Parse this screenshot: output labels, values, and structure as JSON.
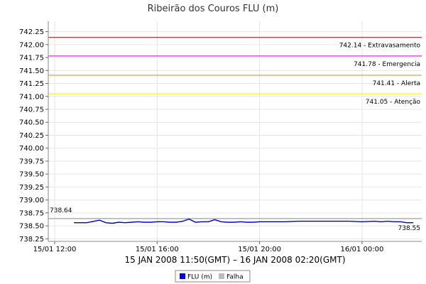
{
  "chart_data": {
    "type": "line",
    "title": "Ribeirão dos Couros FLU (m)",
    "subtitle": "15 JAN 2008 11:50(GMT) – 16 JAN 2008 02:20(GMT)",
    "ylim": [
      738.2,
      742.45
    ],
    "yticks": [
      "742.25",
      "742.00",
      "741.75",
      "741.50",
      "741.25",
      "741.00",
      "740.75",
      "740.50",
      "740.25",
      "740.00",
      "739.75",
      "739.50",
      "739.25",
      "739.00",
      "738.75",
      "738.50",
      "738.25"
    ],
    "x_range_hours": [
      11.75,
      26.33
    ],
    "xticks": [
      {
        "label": "15/01 12:00",
        "hour": 12
      },
      {
        "label": "15/01 16:00",
        "hour": 16
      },
      {
        "label": "15/01 20:00",
        "hour": 20
      },
      {
        "label": "16/01 00:00",
        "hour": 24
      }
    ],
    "thresholds": [
      {
        "value": 742.14,
        "label": "742.14 - Extravasamento",
        "color": "#cc3333"
      },
      {
        "value": 741.78,
        "label": "741.78 - Emergencia",
        "color": "#cc33cc"
      },
      {
        "value": 741.41,
        "label": "741.41 - Alerta",
        "color": "#ff9933"
      },
      {
        "value": 741.05,
        "label": "741.05 - Atenção",
        "color": "#ffee33"
      }
    ],
    "edge_labels": {
      "start": "738.64",
      "end": "738.55"
    },
    "reference_line": {
      "value": 738.64,
      "color": "#888888"
    },
    "series": [
      {
        "name": "FLU (m)",
        "color": "#0000cc",
        "x": [
          12.75,
          13.25,
          13.75,
          14.0,
          14.25,
          14.5,
          14.75,
          15.0,
          15.25,
          15.5,
          15.75,
          16.0,
          16.25,
          16.5,
          16.75,
          17.0,
          17.25,
          17.5,
          17.75,
          18.0,
          18.25,
          18.5,
          18.75,
          19.0,
          19.25,
          19.5,
          19.75,
          20.0,
          20.5,
          21.0,
          21.5,
          22.0,
          22.5,
          23.0,
          23.5,
          24.0,
          24.5,
          24.75,
          25.0,
          25.25,
          25.5,
          25.75,
          26.0
        ],
        "y": [
          738.56,
          738.56,
          738.61,
          738.56,
          738.55,
          738.57,
          738.56,
          738.57,
          738.58,
          738.57,
          738.57,
          738.58,
          738.58,
          738.57,
          738.57,
          738.59,
          738.63,
          738.57,
          738.58,
          738.58,
          738.62,
          738.58,
          738.57,
          738.57,
          738.58,
          738.57,
          738.57,
          738.58,
          738.58,
          738.58,
          738.59,
          738.59,
          738.59,
          738.59,
          738.59,
          738.58,
          738.59,
          738.58,
          738.59,
          738.58,
          738.58,
          738.56,
          738.56
        ]
      }
    ],
    "legend": [
      {
        "label": "FLU (m)",
        "color": "#0000dd"
      },
      {
        "label": "Falha",
        "color": "#bbbbbb"
      }
    ]
  }
}
